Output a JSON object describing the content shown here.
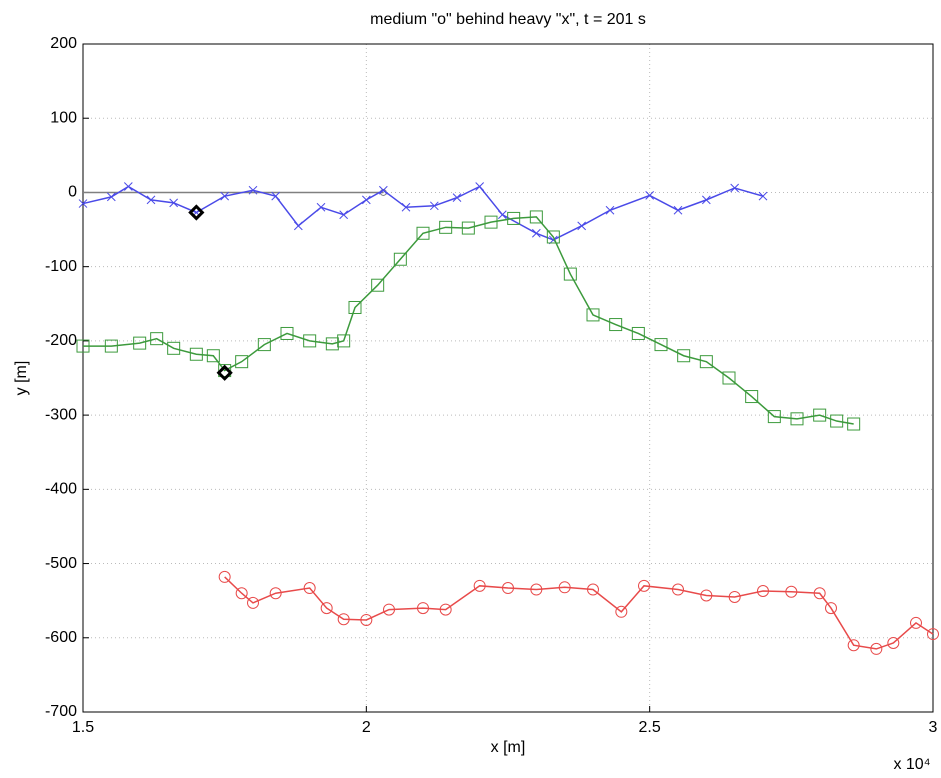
{
  "chart_data": {
    "type": "line",
    "title": "medium \"o\" behind heavy \"x\", t = 201 s",
    "xlabel": "x [m]",
    "ylabel": "y [m]",
    "x_exponent_label": "x 10⁴",
    "xlim": [
      1.5,
      3
    ],
    "ylim": [
      -700,
      200
    ],
    "xticks": [
      1.5,
      2,
      2.5,
      3
    ],
    "yticks": [
      -700,
      -600,
      -500,
      -400,
      -300,
      -200,
      -100,
      0,
      100,
      200
    ],
    "grid": true,
    "series": [
      {
        "color": "#808080",
        "marker": "none",
        "x": [
          1.5,
          2.03
        ],
        "values": [
          0,
          0
        ]
      },
      {
        "color": "#4a4ae8",
        "marker": "x",
        "x": [
          1.5,
          1.55,
          1.58,
          1.62,
          1.66,
          1.7,
          1.75,
          1.8,
          1.84,
          1.88,
          1.92,
          1.96,
          2.0,
          2.03,
          2.07,
          2.12,
          2.16,
          2.2,
          2.24,
          2.3,
          2.33,
          2.38,
          2.43,
          2.5,
          2.55,
          2.6,
          2.65,
          2.7
        ],
        "values": [
          -15,
          -6,
          8,
          -10,
          -14,
          -27,
          -5,
          3,
          -5,
          -45,
          -20,
          -30,
          -10,
          3,
          -20,
          -18,
          -7,
          8,
          -30,
          -55,
          -64,
          -45,
          -24,
          -4,
          -24,
          -10,
          6,
          -5
        ]
      },
      {
        "color": "#3c9a3c",
        "marker": "square",
        "x": [
          1.5,
          1.55,
          1.6,
          1.63,
          1.66,
          1.7,
          1.73,
          1.75,
          1.78,
          1.82,
          1.86,
          1.9,
          1.94,
          1.96,
          1.98,
          2.02,
          2.06,
          2.1,
          2.14,
          2.18,
          2.22,
          2.26,
          2.3,
          2.33,
          2.36,
          2.4,
          2.44,
          2.48,
          2.52,
          2.56,
          2.6,
          2.64,
          2.68,
          2.72,
          2.76,
          2.8,
          2.83,
          2.86
        ],
        "values": [
          -207,
          -207,
          -203,
          -197,
          -210,
          -218,
          -220,
          -240,
          -228,
          -205,
          -190,
          -200,
          -204,
          -200,
          -155,
          -125,
          -90,
          -55,
          -47,
          -48,
          -40,
          -35,
          -33,
          -60,
          -110,
          -165,
          -178,
          -190,
          -205,
          -220,
          -228,
          -250,
          -275,
          -302,
          -305,
          -300,
          -308,
          -312
        ]
      },
      {
        "color": "#e84a4a",
        "marker": "circle",
        "x": [
          1.75,
          1.78,
          1.8,
          1.84,
          1.9,
          1.93,
          1.96,
          2.0,
          2.04,
          2.1,
          2.14,
          2.2,
          2.25,
          2.3,
          2.35,
          2.4,
          2.45,
          2.49,
          2.55,
          2.6,
          2.65,
          2.7,
          2.75,
          2.8,
          2.82,
          2.86,
          2.9,
          2.93,
          2.97,
          3.0
        ],
        "values": [
          -518,
          -540,
          -553,
          -540,
          -533,
          -560,
          -575,
          -576,
          -562,
          -560,
          -562,
          -530,
          -533,
          -535,
          -532,
          -535,
          -565,
          -530,
          -535,
          -543,
          -545,
          -537,
          -538,
          -540,
          -560,
          -610,
          -615,
          -607,
          -580,
          -595
        ]
      },
      {
        "color": "#000000",
        "marker": "diamond",
        "noline": true,
        "x": [
          1.7,
          1.75
        ],
        "values": [
          -27,
          -243
        ]
      }
    ]
  }
}
